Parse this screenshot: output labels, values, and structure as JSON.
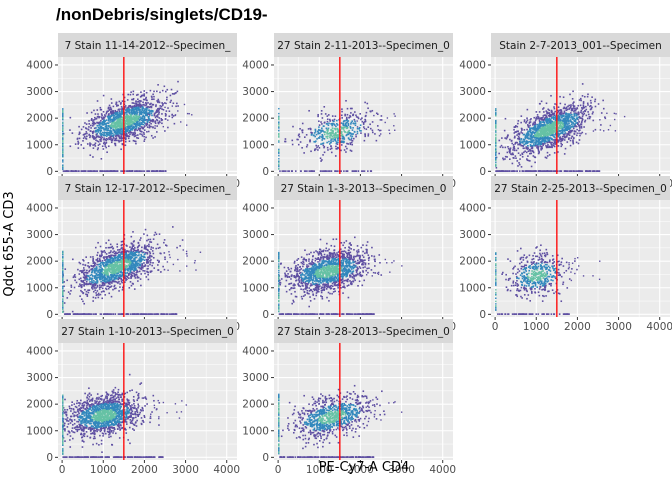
{
  "chart_data": {
    "type": "heatmap",
    "title": "/nonDebris/singlets/CD19-",
    "xlabel": "PE-Cy7-A CD4",
    "ylabel": "Qdot 655-A CD3",
    "xlim": [
      -100,
      4250
    ],
    "ylim": [
      -100,
      4300
    ],
    "x_ticks": [
      0,
      1000,
      2000,
      3000,
      4000
    ],
    "y_ticks": [
      0,
      1000,
      2000,
      3000,
      4000
    ],
    "gate_x": 1500,
    "grid": true,
    "colors": {
      "panel_bg": "#ebebeb",
      "grid": "#ffffff",
      "strip_bg": "#d9d9d9",
      "gate_line": "#ff0000",
      "density_low": "#5e4fa2",
      "density_mid": "#3288bd",
      "density_high": "#66c2a5"
    },
    "panels": [
      {
        "label": "7 Stain 11-14-2012--Specimen_",
        "density": "high",
        "cluster": {
          "cx": 1500,
          "cy": 1900,
          "spreadx": 800,
          "tilt": 0.45,
          "xmax": 2800
        }
      },
      {
        "label": "27 Stain 2-11-2013--Specimen_0",
        "density": "low",
        "cluster": {
          "cx": 1400,
          "cy": 1500,
          "spreadx": 700,
          "tilt": 0.3,
          "xmax": 2500
        }
      },
      {
        "label": "Stain 2-7-2013_001--Specimen",
        "density": "high",
        "cluster": {
          "cx": 1300,
          "cy": 1600,
          "spreadx": 800,
          "tilt": 0.6,
          "xmax": 2800
        }
      },
      {
        "label": "7 Stain 12-17-2012--Specimen_",
        "density": "high",
        "cluster": {
          "cx": 1300,
          "cy": 1800,
          "spreadx": 800,
          "tilt": 0.55,
          "xmax": 3100
        }
      },
      {
        "label": "27 Stain 1-3-2013--Specimen_0",
        "density": "high",
        "cluster": {
          "cx": 1200,
          "cy": 1650,
          "spreadx": 750,
          "tilt": 0.3,
          "xmax": 2600
        }
      },
      {
        "label": "27 Stain 2-25-2013--Specimen_0",
        "density": "low",
        "cluster": {
          "cx": 1000,
          "cy": 1500,
          "spreadx": 550,
          "tilt": 0.2,
          "xmax": 2000
        }
      },
      {
        "label": "27 Stain 1-10-2013--Specimen_0",
        "density": "high",
        "cluster": {
          "cx": 1000,
          "cy": 1600,
          "spreadx": 700,
          "tilt": 0.2,
          "xmax": 2700
        }
      },
      {
        "label": "27 Stain 3-28-2013--Specimen_0",
        "density": "medium",
        "cluster": {
          "cx": 1300,
          "cy": 1550,
          "spreadx": 750,
          "tilt": 0.35,
          "xmax": 2600
        }
      }
    ]
  }
}
